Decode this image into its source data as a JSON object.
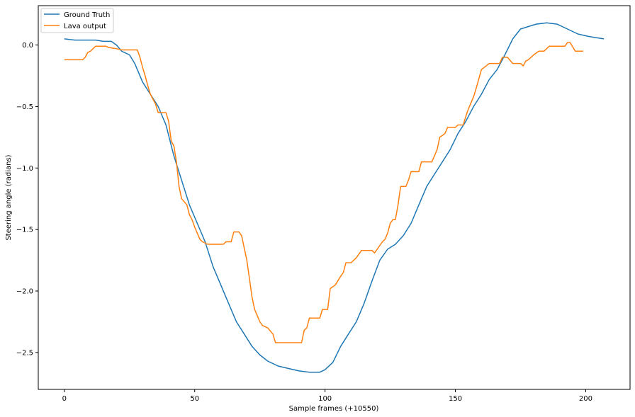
{
  "chart_data": {
    "type": "line",
    "title": "",
    "xlabel": "Sample frames (+10550)",
    "ylabel": "Steering angle (radians)",
    "xlim": [
      -10,
      217
    ],
    "ylim": [
      -2.8,
      0.32
    ],
    "grid": false,
    "legend_position": "top-left",
    "x_ticks": [
      0,
      50,
      100,
      150,
      200
    ],
    "x_tick_labels": [
      "0",
      "50",
      "100",
      "150",
      "200"
    ],
    "y_ticks": [
      0.0,
      -0.5,
      -1.0,
      -1.5,
      -2.0,
      -2.5
    ],
    "y_tick_labels": [
      "0.0",
      "−0.5",
      "−1.0",
      "−1.5",
      "−2.0",
      "−2.5"
    ],
    "series": [
      {
        "name": "Ground Truth",
        "color": "#1f77b4",
        "points": [
          [
            0,
            0.05
          ],
          [
            4,
            0.04
          ],
          [
            8,
            0.04
          ],
          [
            12,
            0.04
          ],
          [
            15,
            0.03
          ],
          [
            18,
            0.03
          ],
          [
            20,
            0.0
          ],
          [
            22,
            -0.05
          ],
          [
            25,
            -0.08
          ],
          [
            27,
            -0.15
          ],
          [
            30,
            -0.3
          ],
          [
            33,
            -0.4
          ],
          [
            36,
            -0.5
          ],
          [
            39,
            -0.65
          ],
          [
            42,
            -0.9
          ],
          [
            45,
            -1.1
          ],
          [
            48,
            -1.3
          ],
          [
            51,
            -1.45
          ],
          [
            54,
            -1.6
          ],
          [
            57,
            -1.8
          ],
          [
            60,
            -1.95
          ],
          [
            63,
            -2.1
          ],
          [
            66,
            -2.25
          ],
          [
            69,
            -2.35
          ],
          [
            72,
            -2.45
          ],
          [
            75,
            -2.52
          ],
          [
            78,
            -2.57
          ],
          [
            82,
            -2.61
          ],
          [
            86,
            -2.63
          ],
          [
            90,
            -2.65
          ],
          [
            94,
            -2.66
          ],
          [
            98,
            -2.66
          ],
          [
            100,
            -2.64
          ],
          [
            103,
            -2.58
          ],
          [
            106,
            -2.45
          ],
          [
            109,
            -2.35
          ],
          [
            112,
            -2.25
          ],
          [
            115,
            -2.1
          ],
          [
            118,
            -1.92
          ],
          [
            121,
            -1.75
          ],
          [
            124,
            -1.66
          ],
          [
            127,
            -1.62
          ],
          [
            130,
            -1.55
          ],
          [
            133,
            -1.45
          ],
          [
            136,
            -1.3
          ],
          [
            139,
            -1.15
          ],
          [
            142,
            -1.05
          ],
          [
            145,
            -0.95
          ],
          [
            148,
            -0.85
          ],
          [
            151,
            -0.72
          ],
          [
            154,
            -0.62
          ],
          [
            157,
            -0.5
          ],
          [
            160,
            -0.4
          ],
          [
            163,
            -0.28
          ],
          [
            166,
            -0.2
          ],
          [
            169,
            -0.08
          ],
          [
            172,
            0.05
          ],
          [
            175,
            0.13
          ],
          [
            178,
            0.15
          ],
          [
            181,
            0.17
          ],
          [
            185,
            0.18
          ],
          [
            189,
            0.17
          ],
          [
            193,
            0.13
          ],
          [
            197,
            0.09
          ],
          [
            201,
            0.07
          ],
          [
            204,
            0.06
          ],
          [
            207,
            0.05
          ]
        ]
      },
      {
        "name": "Lava output",
        "color": "#ff7f0e",
        "points": [
          [
            0,
            -0.12
          ],
          [
            7,
            -0.12
          ],
          [
            8,
            -0.1
          ],
          [
            9,
            -0.06
          ],
          [
            10,
            -0.05
          ],
          [
            11,
            -0.03
          ],
          [
            12,
            -0.01
          ],
          [
            16,
            -0.01
          ],
          [
            17,
            -0.02
          ],
          [
            20,
            -0.03
          ],
          [
            22,
            -0.04
          ],
          [
            28,
            -0.04
          ],
          [
            29,
            -0.1
          ],
          [
            30,
            -0.18
          ],
          [
            31,
            -0.25
          ],
          [
            32,
            -0.33
          ],
          [
            33,
            -0.4
          ],
          [
            35,
            -0.48
          ],
          [
            36,
            -0.55
          ],
          [
            39,
            -0.55
          ],
          [
            40,
            -0.62
          ],
          [
            41,
            -0.78
          ],
          [
            42,
            -0.82
          ],
          [
            43,
            -0.95
          ],
          [
            44,
            -1.15
          ],
          [
            45,
            -1.25
          ],
          [
            47,
            -1.3
          ],
          [
            48,
            -1.38
          ],
          [
            49,
            -1.42
          ],
          [
            50,
            -1.48
          ],
          [
            52,
            -1.58
          ],
          [
            53,
            -1.6
          ],
          [
            55,
            -1.62
          ],
          [
            61,
            -1.62
          ],
          [
            62,
            -1.6
          ],
          [
            64,
            -1.6
          ],
          [
            65,
            -1.52
          ],
          [
            67,
            -1.52
          ],
          [
            68,
            -1.55
          ],
          [
            69,
            -1.65
          ],
          [
            70,
            -1.75
          ],
          [
            71,
            -1.9
          ],
          [
            72,
            -2.05
          ],
          [
            73,
            -2.15
          ],
          [
            74,
            -2.2
          ],
          [
            75,
            -2.25
          ],
          [
            76,
            -2.28
          ],
          [
            78,
            -2.3
          ],
          [
            80,
            -2.35
          ],
          [
            81,
            -2.42
          ],
          [
            91,
            -2.42
          ],
          [
            92,
            -2.32
          ],
          [
            93,
            -2.3
          ],
          [
            94,
            -2.22
          ],
          [
            98,
            -2.22
          ],
          [
            99,
            -2.15
          ],
          [
            101,
            -2.15
          ],
          [
            102,
            -1.98
          ],
          [
            104,
            -1.95
          ],
          [
            106,
            -1.88
          ],
          [
            107,
            -1.85
          ],
          [
            108,
            -1.77
          ],
          [
            110,
            -1.77
          ],
          [
            111,
            -1.75
          ],
          [
            112,
            -1.73
          ],
          [
            114,
            -1.67
          ],
          [
            118,
            -1.67
          ],
          [
            119,
            -1.69
          ],
          [
            120,
            -1.66
          ],
          [
            122,
            -1.6
          ],
          [
            123,
            -1.58
          ],
          [
            124,
            -1.53
          ],
          [
            125,
            -1.45
          ],
          [
            126,
            -1.42
          ],
          [
            127,
            -1.42
          ],
          [
            128,
            -1.3
          ],
          [
            129,
            -1.15
          ],
          [
            131,
            -1.15
          ],
          [
            132,
            -1.1
          ],
          [
            133,
            -1.03
          ],
          [
            136,
            -1.03
          ],
          [
            137,
            -0.95
          ],
          [
            141,
            -0.95
          ],
          [
            142,
            -0.9
          ],
          [
            143,
            -0.85
          ],
          [
            144,
            -0.75
          ],
          [
            146,
            -0.72
          ],
          [
            147,
            -0.67
          ],
          [
            150,
            -0.67
          ],
          [
            151,
            -0.65
          ],
          [
            153,
            -0.65
          ],
          [
            154,
            -0.58
          ],
          [
            155,
            -0.52
          ],
          [
            157,
            -0.42
          ],
          [
            158,
            -0.35
          ],
          [
            160,
            -0.2
          ],
          [
            163,
            -0.15
          ],
          [
            167,
            -0.15
          ],
          [
            168,
            -0.1
          ],
          [
            170,
            -0.1
          ],
          [
            172,
            -0.15
          ],
          [
            175,
            -0.15
          ],
          [
            176,
            -0.17
          ],
          [
            177,
            -0.13
          ],
          [
            178,
            -0.12
          ],
          [
            180,
            -0.08
          ],
          [
            182,
            -0.05
          ],
          [
            184,
            -0.05
          ],
          [
            186,
            -0.01
          ],
          [
            192,
            -0.01
          ],
          [
            193,
            0.02
          ],
          [
            194,
            0.02
          ],
          [
            196,
            -0.05
          ],
          [
            199,
            -0.05
          ]
        ]
      }
    ]
  }
}
